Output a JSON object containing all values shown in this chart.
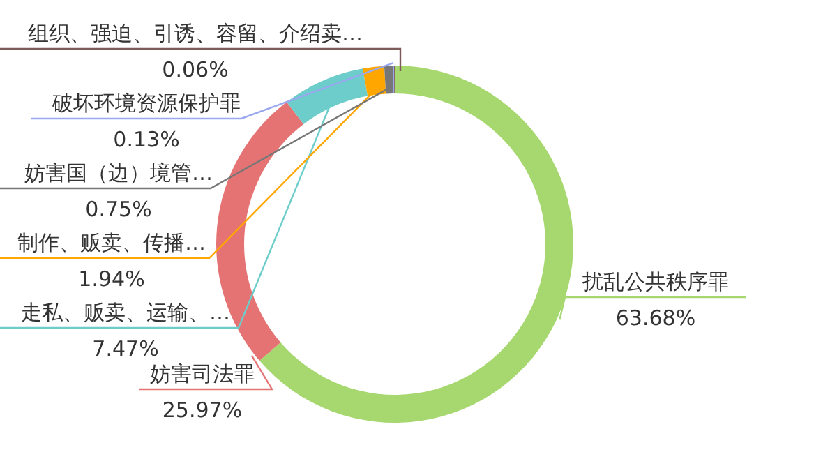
{
  "chart_data": {
    "type": "donut",
    "categories": [
      "扰乱公共秩序罪",
      "妨害司法罪",
      "走私、贩卖、运输、…",
      "制作、贩卖、传播…",
      "妨害国（边）境管…",
      "破坏环境资源保护罪",
      "组织、强迫、引诱、容留、介绍卖…"
    ],
    "values": [
      63.68,
      25.97,
      7.47,
      1.94,
      0.75,
      0.13,
      0.06
    ],
    "colors": [
      "#a6d86f",
      "#e57373",
      "#6ccdcb",
      "#ffa600",
      "#777777",
      "#9aa8f0",
      "#7e5b5b"
    ],
    "value_labels": [
      "63.68%",
      "25.97%",
      "7.47%",
      "1.94%",
      "0.75%",
      "0.13%",
      "0.06%"
    ]
  }
}
